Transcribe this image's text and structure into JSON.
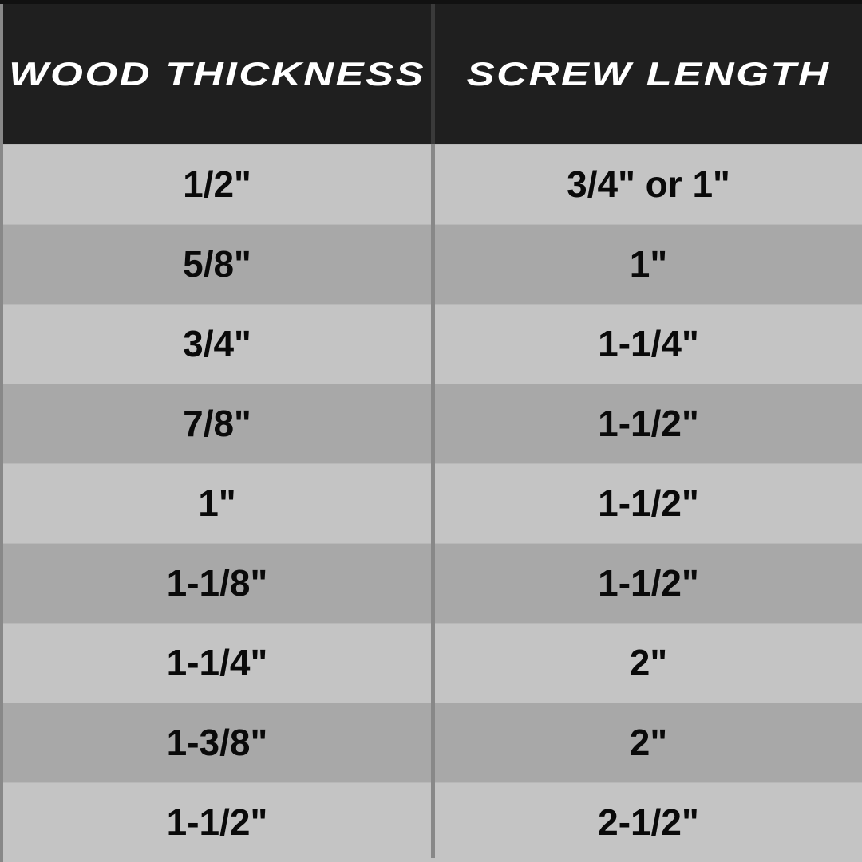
{
  "header": {
    "col1": "Wood Thickness",
    "col2": "Screw Length"
  },
  "colors": {
    "header_bg": "#1f1f1f",
    "row_light": "#c4c4c4",
    "row_dark": "#a8a8a8",
    "divider": "#888888"
  },
  "chart_data": {
    "type": "table",
    "columns": [
      "Wood Thickness",
      "Screw Length"
    ],
    "rows": [
      [
        "1/2\"",
        "3/4\" or 1\""
      ],
      [
        "5/8\"",
        "1\""
      ],
      [
        "3/4\"",
        "1-1/4\""
      ],
      [
        "7/8\"",
        "1-1/2\""
      ],
      [
        "1\"",
        "1-1/2\""
      ],
      [
        "1-1/8\"",
        "1-1/2\""
      ],
      [
        "1-1/4\"",
        "2\""
      ],
      [
        "1-3/8\"",
        "2\""
      ],
      [
        "1-1/2\"",
        "2-1/2\""
      ]
    ]
  }
}
